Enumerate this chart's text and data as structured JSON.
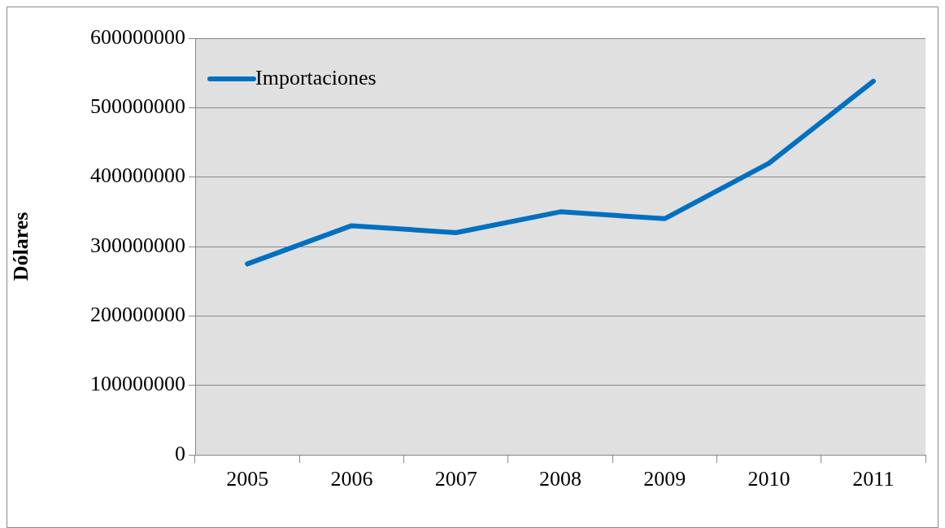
{
  "chart_data": {
    "type": "line",
    "ylabel": "Dólares",
    "categories": [
      "2005",
      "2006",
      "2007",
      "2008",
      "2009",
      "2010",
      "2011"
    ],
    "series": [
      {
        "name": "Importaciones",
        "color": "#0070c0",
        "values": [
          275000000,
          330000000,
          320000000,
          350000000,
          340000000,
          420000000,
          538000000
        ]
      }
    ],
    "ylim": [
      0,
      600000000
    ],
    "yticks": [
      0,
      100000000,
      200000000,
      300000000,
      400000000,
      500000000,
      600000000
    ],
    "grid": "y",
    "legend": "top left",
    "marker": "none",
    "line_style": "solid"
  }
}
